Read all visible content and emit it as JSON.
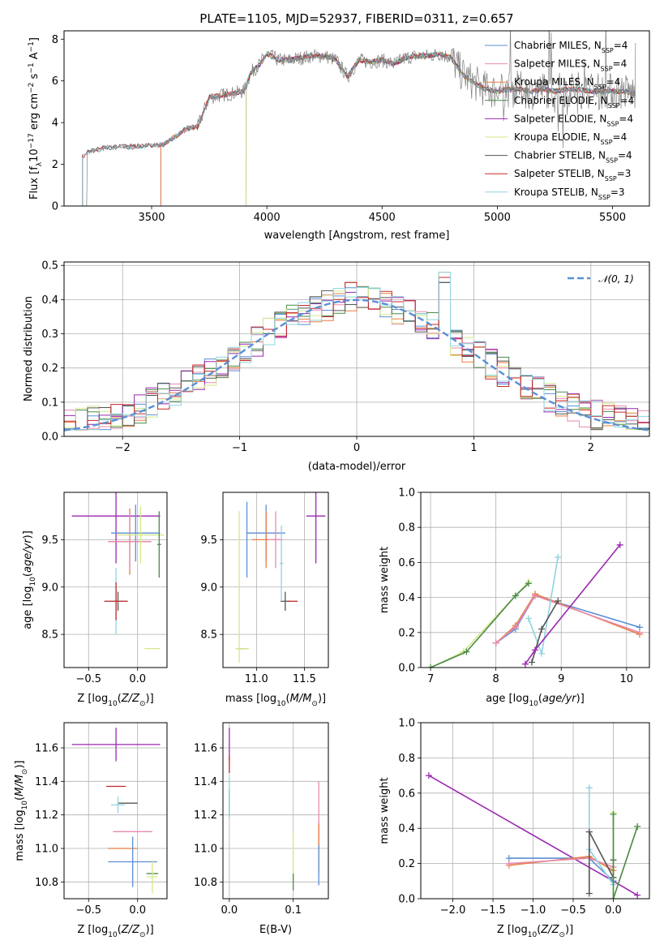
{
  "colors": {
    "Chabrier MILES": "#5b8fd6",
    "Salpeter MILES": "#e88ab0",
    "Kroupa MILES": "#e87d3e",
    "Chabrier ELODIE": "#4a8a4a",
    "Salpeter ELODIE": "#9b27b0",
    "Kroupa ELODIE": "#d4e88a",
    "Chabrier STELIB": "#555555",
    "Salpeter STELIB": "#c62828",
    "Kroupa STELIB": "#8ed4e0",
    "model_gaussian": "#5b8fd6",
    "observed_spectrum": "#808080"
  },
  "chart_data": [
    {
      "id": "spectrum",
      "type": "line",
      "title": "PLATE=1105, MJD=52937, FIBERID=0311, z=0.657",
      "xlabel": "wavelength [Angstrom, rest frame]",
      "ylabel": "Flux [f_λ 10^-17 erg cm^-2 s^-1 A^-1]",
      "xlim": [
        3120,
        5660
      ],
      "ylim": [
        0,
        8.4
      ],
      "xticks": [
        3500,
        4000,
        4500,
        5000,
        5500
      ],
      "yticks": [
        0,
        2,
        4,
        6,
        8
      ],
      "grid": false,
      "legend_position": "right",
      "legend": [
        {
          "label": "Chabrier MILES, N",
          "sub": "SSP",
          "suffix": "=4"
        },
        {
          "label": "Salpeter MILES, N",
          "sub": "SSP",
          "suffix": "=4"
        },
        {
          "label": "Kroupa MILES, N",
          "sub": "SSP",
          "suffix": "=4"
        },
        {
          "label": "Chabrier ELODIE, N",
          "sub": "SSP",
          "suffix": "=4"
        },
        {
          "label": "Salpeter ELODIE, N",
          "sub": "SSP",
          "suffix": "=4"
        },
        {
          "label": "Kroupa ELODIE, N",
          "sub": "SSP",
          "suffix": "=4"
        },
        {
          "label": "Chabrier STELIB, N",
          "sub": "SSP",
          "suffix": "=4"
        },
        {
          "label": "Salpeter STELIB, N",
          "sub": "SSP",
          "suffix": "=3"
        },
        {
          "label": "Kroupa STELIB, N",
          "sub": "SSP",
          "suffix": "=3"
        }
      ],
      "continuum": {
        "x": [
          3200,
          3230,
          3300,
          3400,
          3500,
          3550,
          3600,
          3650,
          3700,
          3750,
          3800,
          3850,
          3900,
          3930,
          3970,
          4000,
          4050,
          4100,
          4150,
          4200,
          4250,
          4300,
          4350,
          4400,
          4450,
          4500,
          4550,
          4600,
          4650,
          4700,
          4750,
          4800,
          4850,
          4900,
          4950,
          5000,
          5050,
          5100,
          5150,
          5200,
          5250,
          5300,
          5350,
          5400,
          5450,
          5500,
          5550,
          5600
        ],
        "y": [
          2.4,
          2.6,
          2.8,
          2.85,
          2.9,
          2.95,
          3.3,
          3.7,
          3.8,
          5.2,
          5.3,
          5.4,
          5.5,
          6.4,
          6.8,
          7.3,
          7.0,
          7.0,
          7.1,
          7.2,
          7.2,
          7.0,
          6.2,
          7.0,
          6.9,
          7.0,
          6.8,
          7.1,
          7.2,
          7.2,
          7.3,
          7.1,
          6.3,
          5.9,
          5.6,
          5.5,
          5.6,
          5.6,
          5.5,
          5.6,
          5.5,
          5.6,
          5.6,
          5.5,
          5.5,
          5.5,
          5.5,
          5.4
        ]
      },
      "model_start": {
        "Chabrier MILES": 3540,
        "Salpeter MILES": 3540,
        "Kroupa MILES": 3540,
        "Chabrier ELODIE": 3910,
        "Salpeter ELODIE": 3910,
        "Kroupa ELODIE": 3910,
        "Chabrier STELIB": 3200,
        "Salpeter STELIB": 3200,
        "Kroupa STELIB": 3200
      }
    },
    {
      "id": "residuals",
      "type": "line",
      "xlabel": "(data-model)/error",
      "ylabel": "Normed distribution",
      "xlim": [
        -2.5,
        2.5
      ],
      "ylim": [
        0,
        0.51
      ],
      "xticks": [
        -2,
        -1,
        0,
        1,
        2
      ],
      "yticks": [
        0.0,
        0.1,
        0.2,
        0.3,
        0.4,
        0.5
      ],
      "grid": true,
      "legend_position": "top-right",
      "legend": [
        {
          "label": "𝒩(0, 1)",
          "style": "dashed"
        }
      ],
      "bin_width": 0.1
    },
    {
      "id": "age_vs_Z",
      "type": "scatter",
      "xlabel": "Z [log10(Z/Z⊙)]",
      "ylabel": "age [log10(age/yr)]",
      "xlim": [
        -0.75,
        0.3
      ],
      "ylim": [
        8.15,
        10.0
      ],
      "xticks": [
        -0.5,
        0.0
      ],
      "yticks": [
        8.5,
        9.0,
        9.5
      ],
      "grid": true,
      "points": [
        {
          "m": "Salpeter ELODIE",
          "x": -0.22,
          "xerr": 0.45,
          "y": 9.75,
          "yerr": 0.5
        },
        {
          "m": "Chabrier MILES",
          "x": -0.02,
          "xerr": 0.25,
          "y": 9.57,
          "yerr": 0.3
        },
        {
          "m": "Kroupa MILES",
          "x": -0.08,
          "xerr": 0.22,
          "y": 9.48,
          "yerr": 0.35
        },
        {
          "m": "Salpeter MILES",
          "x": -0.08,
          "xerr": 0.22,
          "y": 9.48,
          "yerr": 0.3
        },
        {
          "m": "Kroupa ELODIE",
          "x": 0.03,
          "xerr": 0.24,
          "y": 9.55,
          "yerr": 0.3
        },
        {
          "m": "Chabrier STELIB",
          "x": -0.2,
          "xerr": 0.05,
          "y": 8.85,
          "yerr": 0.1
        },
        {
          "m": "Kroupa STELIB",
          "x": -0.22,
          "xerr": 0.12,
          "y": 8.85,
          "yerr": 0.35
        },
        {
          "m": "Salpeter STELIB",
          "x": -0.22,
          "xerr": 0.12,
          "y": 8.85,
          "yerr": 0.2
        },
        {
          "m": "Kroupa ELODIE",
          "x": 0.15,
          "xerr": 0.08,
          "y": 8.35,
          "yerr": 0.0
        },
        {
          "m": "Chabrier ELODIE",
          "x": 0.22,
          "xerr": 0.02,
          "y": 9.45,
          "yerr": 0.35
        }
      ]
    },
    {
      "id": "age_vs_mass",
      "type": "scatter",
      "xlabel": "mass [log10(M/M⊙)]",
      "ylabel": "",
      "xlim": [
        10.65,
        11.75
      ],
      "ylim": [
        8.15,
        10.0
      ],
      "xticks": [
        11.0,
        11.5
      ],
      "yticks": [
        8.5,
        9.0,
        9.5
      ],
      "grid": true,
      "points": [
        {
          "m": "Salpeter ELODIE",
          "x": 11.62,
          "xerr": 0.1,
          "y": 9.75,
          "yerr": 0.5
        },
        {
          "m": "Chabrier MILES",
          "x": 11.1,
          "xerr": 0.2,
          "y": 9.57,
          "yerr": 0.3
        },
        {
          "m": "Kroupa MILES",
          "x": 11.1,
          "xerr": 0.15,
          "y": 9.5,
          "yerr": 0.3
        },
        {
          "m": "Salpeter MILES",
          "x": 11.2,
          "xerr": 0.08,
          "y": 9.5,
          "yerr": 0.3
        },
        {
          "m": "Chabrier STELIB",
          "x": 11.3,
          "xerr": 0.05,
          "y": 8.85,
          "yerr": 0.1
        },
        {
          "m": "Salpeter STELIB",
          "x": 11.38,
          "xerr": 0.05,
          "y": 8.85,
          "yerr": 0.0
        },
        {
          "m": "Kroupa STELIB",
          "x": 11.26,
          "xerr": 0.02,
          "y": 9.25,
          "yerr": 0.4
        },
        {
          "m": "Chabrier ELODIE",
          "x": 10.85,
          "xerr": 0.05,
          "y": 8.35,
          "yerr": 0.0
        },
        {
          "m": "Kroupa ELODIE",
          "x": 10.85,
          "xerr": 0.07,
          "y": 8.35,
          "yerr": 0.0
        },
        {
          "m": "Chabrier MILES",
          "x": 10.9,
          "xerr": 0.0,
          "y": 9.5,
          "yerr": 0.4
        },
        {
          "m": "Kroupa ELODIE",
          "x": 10.82,
          "xerr": 0.0,
          "y": 9.0,
          "yerr": 0.8
        }
      ]
    },
    {
      "id": "mass_weight_vs_age",
      "type": "line",
      "xlabel": "age [log10(age/yr)]",
      "ylabel": "mass weight",
      "xlim": [
        6.85,
        10.35
      ],
      "ylim": [
        0,
        1.0
      ],
      "xticks": [
        7,
        8,
        9,
        10
      ],
      "yticks": [
        0.0,
        0.2,
        0.4,
        0.6,
        0.8,
        1.0
      ],
      "grid": true,
      "series": [
        {
          "m": "Kroupa ELODIE",
          "x": [
            7.0,
            7.5,
            8.3,
            8.5
          ],
          "y": [
            0.0,
            0.09,
            0.41,
            0.49
          ]
        },
        {
          "m": "Chabrier ELODIE",
          "x": [
            7.0,
            7.55,
            8.3,
            8.5
          ],
          "y": [
            0.0,
            0.09,
            0.41,
            0.48
          ]
        },
        {
          "m": "Chabrier MILES",
          "x": [
            8.0,
            8.3,
            8.6,
            10.2
          ],
          "y": [
            0.14,
            0.22,
            0.41,
            0.23
          ]
        },
        {
          "m": "Kroupa MILES",
          "x": [
            8.0,
            8.3,
            8.6,
            10.2
          ],
          "y": [
            0.14,
            0.24,
            0.42,
            0.19
          ]
        },
        {
          "m": "Salpeter MILES",
          "x": [
            8.0,
            8.3,
            8.6,
            10.2
          ],
          "y": [
            0.14,
            0.23,
            0.41,
            0.2
          ]
        },
        {
          "m": "Kroupa STELIB",
          "x": [
            8.5,
            8.7,
            8.95
          ],
          "y": [
            0.28,
            0.08,
            0.63
          ]
        },
        {
          "m": "Chabrier STELIB",
          "x": [
            8.55,
            8.7,
            8.95
          ],
          "y": [
            0.03,
            0.22,
            0.38
          ]
        },
        {
          "m": "Salpeter ELODIE",
          "x": [
            8.45,
            8.6,
            9.9
          ],
          "y": [
            0.02,
            0.1,
            0.7
          ]
        }
      ]
    },
    {
      "id": "mass_vs_Z",
      "type": "scatter",
      "xlabel": "Z [log10(Z/Z⊙)]",
      "ylabel": "mass [log10(M/M⊙)]",
      "xlim": [
        -0.75,
        0.3
      ],
      "ylim": [
        10.7,
        11.75
      ],
      "xticks": [
        -0.5,
        0.0
      ],
      "yticks": [
        10.8,
        11.0,
        11.2,
        11.4,
        11.6
      ],
      "grid": true,
      "points": [
        {
          "m": "Salpeter ELODIE",
          "x": -0.22,
          "xerr": 0.45,
          "y": 11.62,
          "yerr": 0.1
        },
        {
          "m": "Salpeter STELIB",
          "x": -0.22,
          "xerr": 0.1,
          "y": 11.37,
          "yerr": 0.0
        },
        {
          "m": "Chabrier STELIB",
          "x": -0.1,
          "xerr": 0.1,
          "y": 11.27,
          "yerr": 0.0
        },
        {
          "m": "Kroupa STELIB",
          "x": -0.2,
          "xerr": 0.07,
          "y": 11.26,
          "yerr": 0.05
        },
        {
          "m": "Salpeter MILES",
          "x": -0.05,
          "xerr": 0.2,
          "y": 11.1,
          "yerr": 0.0
        },
        {
          "m": "Kroupa MILES",
          "x": -0.15,
          "xerr": 0.15,
          "y": 11.0,
          "yerr": 0.0
        },
        {
          "m": "Chabrier MILES",
          "x": -0.05,
          "xerr": 0.25,
          "y": 10.92,
          "yerr": 0.15
        },
        {
          "m": "Chabrier ELODIE",
          "x": 0.15,
          "xerr": 0.06,
          "y": 10.85,
          "yerr": 0.0
        },
        {
          "m": "Kroupa ELODIE",
          "x": 0.15,
          "xerr": 0.05,
          "y": 10.83,
          "yerr": 0.1
        }
      ]
    },
    {
      "id": "mass_vs_EBV",
      "type": "scatter",
      "xlabel": "E(B-V)",
      "ylabel": "",
      "xlim": [
        -0.01,
        0.155
      ],
      "ylim": [
        10.7,
        11.75
      ],
      "xticks": [
        0.0,
        0.1
      ],
      "yticks": [
        10.8,
        11.0,
        11.2,
        11.4,
        11.6
      ],
      "grid": true,
      "points": [
        {
          "m": "Salpeter ELODIE",
          "x": 0.0,
          "xerr": 0,
          "y": 11.62,
          "yerr": 0.1
        },
        {
          "m": "Salpeter STELIB",
          "x": 0.0,
          "xerr": 0,
          "y": 11.5,
          "yerr": 0.05
        },
        {
          "m": "Chabrier STELIB",
          "x": 0.0,
          "xerr": 0,
          "y": 11.27,
          "yerr": 0.08
        },
        {
          "m": "Kroupa STELIB",
          "x": 0.0,
          "xerr": 0,
          "y": 11.3,
          "yerr": 0.12
        },
        {
          "m": "Kroupa ELODIE",
          "x": 0.1,
          "xerr": 0,
          "y": 10.95,
          "yerr": 0.15
        },
        {
          "m": "Chabrier ELODIE",
          "x": 0.1,
          "xerr": 0,
          "y": 10.8,
          "yerr": 0.05
        },
        {
          "m": "Salpeter MILES",
          "x": 0.14,
          "xerr": 0,
          "y": 11.2,
          "yerr": 0.2
        },
        {
          "m": "Kroupa MILES",
          "x": 0.14,
          "xerr": 0,
          "y": 11.0,
          "yerr": 0.15
        },
        {
          "m": "Chabrier MILES",
          "x": 0.14,
          "xerr": 0,
          "y": 10.9,
          "yerr": 0.12
        }
      ]
    },
    {
      "id": "mass_weight_vs_Z",
      "type": "line",
      "xlabel": "Z [log10(Z/Z⊙)]",
      "ylabel": "mass weight",
      "xlim": [
        -2.4,
        0.45
      ],
      "ylim": [
        0,
        1.0
      ],
      "xticks": [
        -2.0,
        -1.5,
        -1.0,
        -0.5,
        0.0
      ],
      "yticks": [
        0.0,
        0.2,
        0.4,
        0.6,
        0.8,
        1.0
      ],
      "grid": true,
      "series": [
        {
          "m": "Salpeter ELODIE",
          "x": [
            -2.3,
            0.0,
            0.3
          ],
          "y": [
            0.7,
            0.1,
            0.02
          ]
        },
        {
          "m": "Chabrier MILES",
          "x": [
            -1.3,
            -0.3,
            0.0
          ],
          "y": [
            0.23,
            0.23,
            0.1
          ]
        },
        {
          "m": "Kroupa MILES",
          "x": [
            -1.3,
            -0.3,
            0.0
          ],
          "y": [
            0.19,
            0.24,
            0.16
          ]
        },
        {
          "m": "Salpeter MILES",
          "x": [
            -1.3,
            -0.3,
            0.0
          ],
          "y": [
            0.2,
            0.23,
            0.18
          ]
        },
        {
          "m": "Kroupa STELIB",
          "x": [
            -0.3,
            -0.3,
            0.0,
            0.0
          ],
          "y": [
            0.63,
            0.28,
            0.08,
            0.22
          ]
        },
        {
          "m": "Chabrier STELIB",
          "x": [
            -0.3,
            -0.3,
            0.0,
            0.0
          ],
          "y": [
            0.03,
            0.38,
            0.12,
            0.22
          ]
        },
        {
          "m": "Kroupa ELODIE",
          "x": [
            0.0,
            0.0,
            0.3,
            0.3
          ],
          "y": [
            0.49,
            0.0,
            0.41,
            0.41
          ]
        },
        {
          "m": "Chabrier ELODIE",
          "x": [
            0.0,
            0.0,
            0.3
          ],
          "y": [
            0.48,
            0.0,
            0.41
          ]
        }
      ]
    }
  ]
}
